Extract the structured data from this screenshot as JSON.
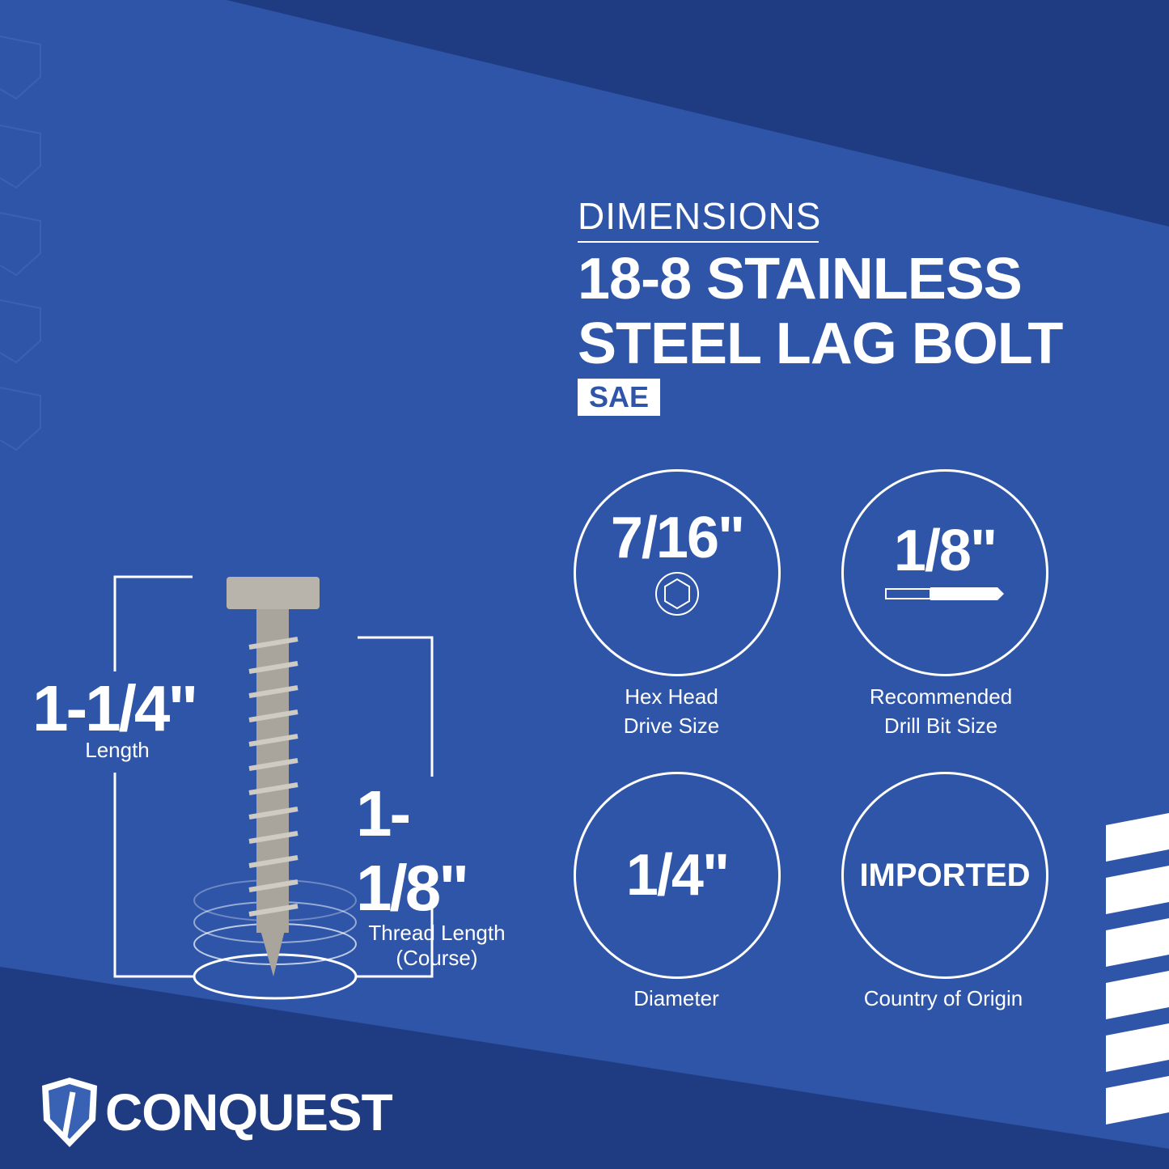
{
  "heading": {
    "kicker": "DIMENSIONS",
    "title_line1": "18-8 STAINLESS",
    "title_line2": "STEEL LAG BOLT",
    "badge": "SAE"
  },
  "specs": [
    {
      "value": "7/16\"",
      "label1": "Hex Head",
      "label2": "Drive Size",
      "icon": "hex-icon"
    },
    {
      "value": "1/8\"",
      "label1": "Recommended",
      "label2": "Drill Bit Size",
      "icon": "drill-bit-icon"
    },
    {
      "value": "1/4\"",
      "label1": "Diameter",
      "label2": ""
    },
    {
      "value": "IMPORTED",
      "label1": "Country of Origin",
      "label2": ""
    }
  ],
  "length": {
    "value": "1-1/4\"",
    "label": "Length"
  },
  "thread": {
    "value": "1-1/8\"",
    "label1": "Thread Length",
    "label2": "(Course)"
  },
  "brand": {
    "name": "CONQUEST"
  },
  "colors": {
    "background": "#2e55a8",
    "dark": "#1d3a80",
    "text": "#ffffff"
  }
}
